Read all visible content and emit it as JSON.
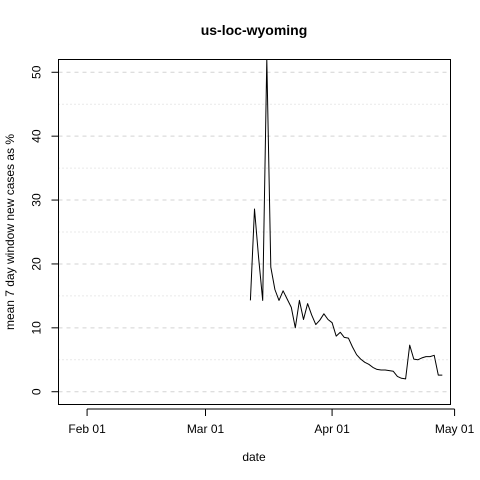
{
  "chart_data": {
    "type": "line",
    "title": "us-loc-wyoming",
    "xlabel": "date",
    "ylabel": "mean  7  day window new cases as %",
    "x_ticks": [
      "Feb 01",
      "Mar 01",
      "Apr 01",
      "May 01"
    ],
    "x_tick_dates": [
      "2020-02-01",
      "2020-03-01",
      "2020-04-01",
      "2020-05-01"
    ],
    "y_ticks": [
      0,
      10,
      20,
      30,
      40,
      50
    ],
    "xlim": [
      "2020-01-25",
      "2020-04-30"
    ],
    "ylim": [
      -2,
      52
    ],
    "grid": true,
    "series": [
      {
        "x": [
          "2020-03-12",
          "2020-03-13",
          "2020-03-14",
          "2020-03-15",
          "2020-03-16",
          "2020-03-17",
          "2020-03-18",
          "2020-03-19",
          "2020-03-20",
          "2020-03-21",
          "2020-03-22",
          "2020-03-23",
          "2020-03-24",
          "2020-03-25",
          "2020-03-26",
          "2020-03-27",
          "2020-03-28",
          "2020-03-29",
          "2020-03-30",
          "2020-03-31",
          "2020-04-01",
          "2020-04-02",
          "2020-04-03",
          "2020-04-04",
          "2020-04-05",
          "2020-04-06",
          "2020-04-07",
          "2020-04-08",
          "2020-04-09",
          "2020-04-10",
          "2020-04-11",
          "2020-04-12",
          "2020-04-13",
          "2020-04-14",
          "2020-04-15",
          "2020-04-16",
          "2020-04-17",
          "2020-04-18",
          "2020-04-19",
          "2020-04-20",
          "2020-04-21",
          "2020-04-22",
          "2020-04-23",
          "2020-04-24",
          "2020-04-25",
          "2020-04-26",
          "2020-04-27",
          "2020-04-28"
        ],
        "y": [
          14.3,
          28.6,
          21.0,
          14.3,
          52.0,
          19.5,
          16.0,
          14.3,
          15.8,
          14.5,
          13.2,
          10.0,
          14.3,
          11.3,
          13.8,
          12.0,
          10.5,
          11.2,
          12.2,
          11.3,
          10.8,
          8.7,
          9.3,
          8.5,
          8.4,
          7.0,
          5.8,
          5.1,
          4.6,
          4.3,
          3.8,
          3.5,
          3.4,
          3.4,
          3.3,
          3.2,
          2.4,
          2.1,
          2.0,
          7.3,
          5.1,
          5.0,
          5.3,
          5.5,
          5.5,
          5.7,
          2.6,
          2.6
        ]
      }
    ]
  }
}
